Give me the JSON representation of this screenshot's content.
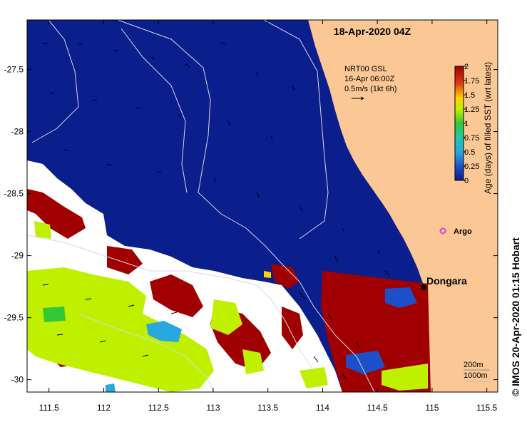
{
  "map": {
    "title": "18-Apr-2020 04Z",
    "credit": "©  IMOS 20-Apr-2020 01:15 Hobart",
    "current_legend": {
      "line1": "NRT00 GSL",
      "line2": "16-Apr 06:00Z",
      "line3": "0.5m/s (1kt 6h)"
    },
    "colorbar": {
      "title": "Age (days) of filled SST (wrt latest)",
      "ticks": [
        "2",
        "1.75",
        "1.5",
        "1.25",
        "1",
        "0.75",
        "0.5",
        "0.25",
        "0"
      ]
    },
    "places": {
      "dongara": "Dongara",
      "argo": "Argo"
    },
    "contours": {
      "label_200": "200m",
      "label_1000": "1000m"
    },
    "colors": {
      "ocean_recent": "#0a1e8c",
      "land": "#fbc794",
      "age_high": "#a00000",
      "age_mid": "#bff000",
      "age_low": "#29a8e0",
      "no_data": "#ffffff",
      "argo": "#e040e0"
    }
  },
  "chart_data": {
    "type": "heatmap",
    "xaxis_ticks": [
      "111.5",
      "112",
      "112.5",
      "113",
      "113.5",
      "114",
      "114.5",
      "115",
      "115.5"
    ],
    "yaxis_ticks": [
      "-27.5",
      "-28",
      "-28.5",
      "-29",
      "-29.5",
      "-30"
    ],
    "xlim": [
      111.3,
      115.6
    ],
    "ylim": [
      -30.1,
      -27.1
    ],
    "color_range": [
      0,
      2
    ],
    "argo": {
      "lon": 115.1,
      "lat": -28.85
    },
    "dongara": {
      "lon": 114.93,
      "lat": -29.25
    }
  }
}
